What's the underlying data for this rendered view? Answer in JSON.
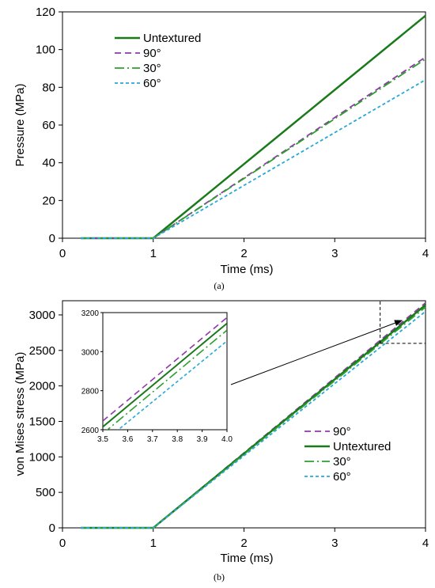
{
  "chart_data": [
    {
      "type": "line",
      "caption": "(a)",
      "xlabel": "Time (ms)",
      "ylabel": "Pressure (MPa)",
      "xlim": [
        0,
        4
      ],
      "ylim": [
        0,
        120
      ],
      "xticks": [
        "0",
        "1",
        "2",
        "3",
        "4"
      ],
      "yticks": [
        "0",
        "20",
        "40",
        "60",
        "80",
        "100",
        "120"
      ],
      "grid": false,
      "legend_position": "top-left",
      "series": [
        {
          "name": "Untextured",
          "color": "#1a7a1a",
          "dash": "solid",
          "x": [
            0.2,
            1.0,
            4.0
          ],
          "y": [
            0,
            0,
            118
          ]
        },
        {
          "name": "90°",
          "color": "#8e3aa8",
          "dash": "dash",
          "x": [
            0.2,
            1.0,
            4.0
          ],
          "y": [
            0,
            0,
            96
          ]
        },
        {
          "name": "30°",
          "color": "#2ca02c",
          "dash": "dashdot",
          "x": [
            0.2,
            1.0,
            4.0
          ],
          "y": [
            0,
            0,
            95
          ]
        },
        {
          "name": "60°",
          "color": "#29a8d8",
          "dash": "shortdash",
          "x": [
            0.2,
            1.0,
            4.0
          ],
          "y": [
            0,
            0,
            84
          ]
        }
      ]
    },
    {
      "type": "line",
      "caption": "(b)",
      "xlabel": "Time (ms)",
      "ylabel": "von Mises stress (MPa)",
      "xlim": [
        0,
        4
      ],
      "ylim": [
        0,
        3200
      ],
      "xticks": [
        "0",
        "1",
        "2",
        "3",
        "4"
      ],
      "yticks": [
        "0",
        "500",
        "1000",
        "1500",
        "2000",
        "2500",
        "3000"
      ],
      "grid": false,
      "legend_position": "center-right",
      "series": [
        {
          "name": "90°",
          "color": "#8e3aa8",
          "dash": "dash",
          "x": [
            0.2,
            1.0,
            4.0
          ],
          "y": [
            0,
            0,
            3170
          ]
        },
        {
          "name": "Untextured",
          "color": "#1a7a1a",
          "dash": "solid",
          "x": [
            0.2,
            1.0,
            4.0
          ],
          "y": [
            0,
            0,
            3140
          ]
        },
        {
          "name": "30°",
          "color": "#2ca02c",
          "dash": "dashdot",
          "x": [
            0.2,
            1.0,
            4.0
          ],
          "y": [
            0,
            0,
            3110
          ]
        },
        {
          "name": "60°",
          "color": "#29a8d8",
          "dash": "shortdash",
          "x": [
            0.2,
            1.0,
            4.0
          ],
          "y": [
            0,
            0,
            3050
          ]
        }
      ],
      "inset": {
        "xlim": [
          3.5,
          4.0
        ],
        "ylim": [
          2600,
          3200
        ],
        "xticks": [
          "3.5",
          "3.6",
          "3.7",
          "3.8",
          "3.9",
          "4.0"
        ],
        "yticks": [
          "2600",
          "2800",
          "3000",
          "3200"
        ],
        "series": [
          {
            "name": "90°",
            "color": "#8e3aa8",
            "dash": "dash",
            "x": [
              3.5,
              4.0
            ],
            "y": [
              2645,
              3175
            ]
          },
          {
            "name": "Untextured",
            "color": "#1a7a1a",
            "dash": "solid",
            "x": [
              3.5,
              4.0
            ],
            "y": [
              2615,
              3145
            ]
          },
          {
            "name": "30°",
            "color": "#2ca02c",
            "dash": "dashdot",
            "x": [
              3.5,
              4.0
            ],
            "y": [
              2580,
              3110
            ]
          },
          {
            "name": "60°",
            "color": "#29a8d8",
            "dash": "shortdash",
            "x": [
              3.5,
              4.0
            ],
            "y": [
              2535,
              3055
            ]
          }
        ]
      }
    }
  ]
}
